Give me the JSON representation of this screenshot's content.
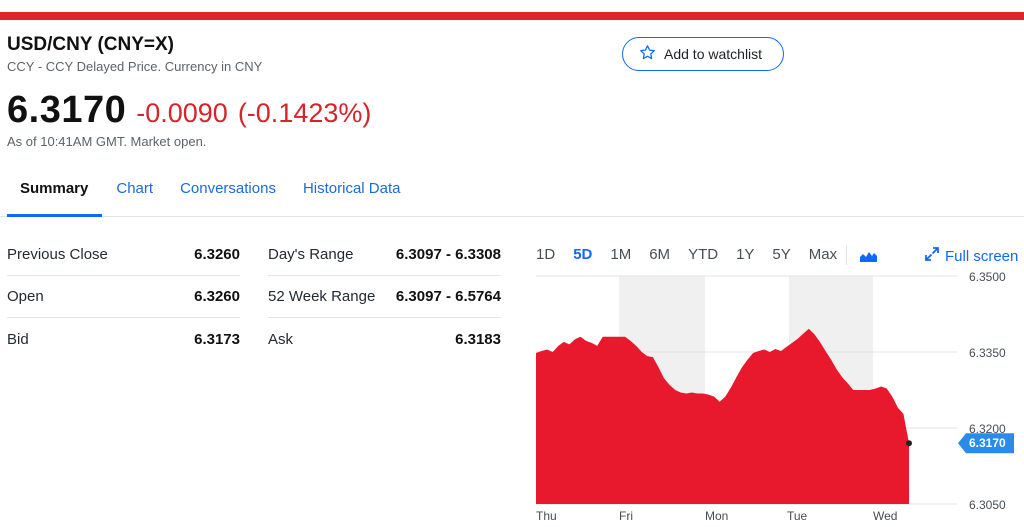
{
  "header": {
    "title": "USD/CNY (CNY=X)",
    "subtitle": "CCY - CCY Delayed Price. Currency in CNY",
    "watchlist_label": "Add to watchlist"
  },
  "quote": {
    "price": "6.3170",
    "change": "-0.0090",
    "change_pct": "(-0.1423%)",
    "as_of": "As of 10:41AM GMT. Market open."
  },
  "tabs": [
    "Summary",
    "Chart",
    "Conversations",
    "Historical Data"
  ],
  "stats": {
    "left": [
      {
        "label": "Previous Close",
        "value": "6.3260"
      },
      {
        "label": "Open",
        "value": "6.3260"
      },
      {
        "label": "Bid",
        "value": "6.3173"
      }
    ],
    "right": [
      {
        "label": "Day's Range",
        "value": "6.3097 - 6.3308"
      },
      {
        "label": "52 Week Range",
        "value": "6.3097 - 6.5764"
      },
      {
        "label": "Ask",
        "value": "6.3183"
      }
    ]
  },
  "chart_controls": {
    "ranges": [
      "1D",
      "5D",
      "1M",
      "6M",
      "YTD",
      "1Y",
      "5Y",
      "Max"
    ],
    "active": "5D",
    "fullscreen_label": "Full screen"
  },
  "colors": {
    "accent": "#0f69ff",
    "negative": "#e0242b",
    "area": "#e8192c"
  },
  "chart_data": {
    "type": "area",
    "x_labels": [
      "Thu",
      "Fri",
      "Mon",
      "Tue",
      "Wed"
    ],
    "y_ticks": [
      "6.3500",
      "6.3350",
      "6.3200",
      "6.3050"
    ],
    "ylim": [
      6.305,
      6.35
    ],
    "current_label": "6.3170",
    "current_value": 6.317,
    "grid": true,
    "values": [
      6.3348,
      6.3352,
      6.3355,
      6.335,
      6.3362,
      6.337,
      6.3365,
      6.3375,
      6.338,
      6.3372,
      6.3368,
      6.3362,
      6.338,
      6.338,
      6.338,
      6.338,
      6.338,
      6.3372,
      6.3362,
      6.335,
      6.3342,
      6.334,
      6.332,
      6.3298,
      6.3285,
      6.3275,
      6.327,
      6.3268,
      6.327,
      6.3268,
      6.3268,
      6.3266,
      6.3262,
      6.3252,
      6.3262,
      6.328,
      6.33,
      6.332,
      6.3335,
      6.3348,
      6.3352,
      6.3355,
      6.335,
      6.3356,
      6.3352,
      6.336,
      6.3368,
      6.3376,
      6.3386,
      6.3396,
      6.3385,
      6.337,
      6.3352,
      6.3335,
      6.3316,
      6.33,
      6.3288,
      6.3275,
      6.3275,
      6.3275,
      6.3275,
      6.3278,
      6.3282,
      6.3278,
      6.3262,
      6.324,
      6.3228,
      6.317
    ]
  }
}
